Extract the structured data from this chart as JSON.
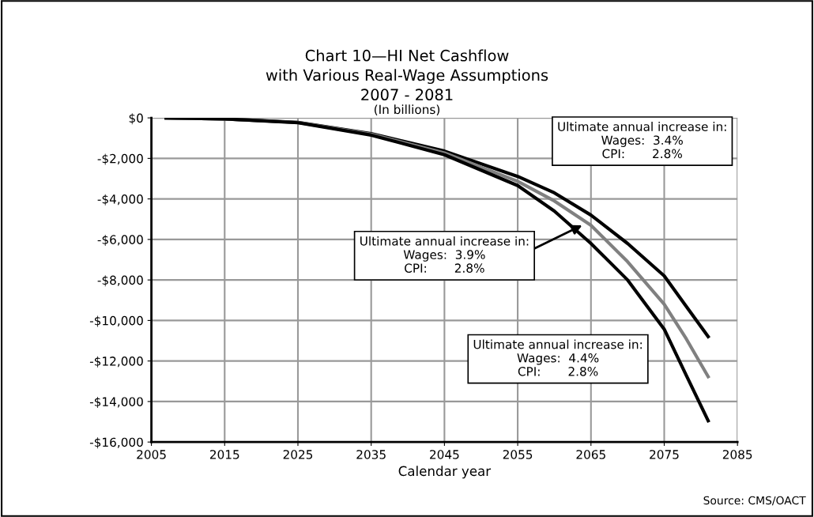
{
  "chart_data": {
    "type": "line",
    "title": "Chart 10—HI Net Cashflow\nwith Various Real-Wage Assumptions\n2007 - 2081",
    "subtitle": "(In billions)",
    "xlabel": "Calendar year",
    "x": [
      2007,
      2015,
      2025,
      2035,
      2045,
      2055,
      2060,
      2065,
      2070,
      2075,
      2078,
      2081
    ],
    "series": [
      {
        "color": "#000000",
        "values": [
          0,
          -50,
          -220,
          -780,
          -1640,
          -2890,
          -3700,
          -4800,
          -6200,
          -7800,
          -9300,
          -10800
        ]
      },
      {
        "color": "#808080",
        "values": [
          0,
          -50,
          -230,
          -810,
          -1730,
          -3130,
          -4100,
          -5300,
          -7100,
          -9200,
          -10900,
          -12770
        ]
      },
      {
        "color": "#000000",
        "values": [
          0,
          -50,
          -240,
          -850,
          -1820,
          -3340,
          -4600,
          -6200,
          -8000,
          -10430,
          -12700,
          -14950
        ]
      }
    ],
    "xlim": [
      2005,
      2085
    ],
    "xticks": [
      2005,
      2015,
      2025,
      2035,
      2045,
      2055,
      2065,
      2075,
      2085
    ],
    "ylim": [
      -16000,
      0
    ],
    "yticks": [
      {
        "value": 0,
        "label": "$0"
      },
      {
        "value": -2000,
        "label": "-$2,000"
      },
      {
        "value": -4000,
        "label": "-$4,000"
      },
      {
        "value": -6000,
        "label": "-$6,000"
      },
      {
        "value": -8000,
        "label": "-$8,000"
      },
      {
        "value": -10000,
        "label": "-$10,000"
      },
      {
        "value": -12000,
        "label": "-$12,000"
      },
      {
        "value": -14000,
        "label": "-$14,000"
      },
      {
        "value": -16000,
        "label": "-$16,000"
      }
    ],
    "grid": true,
    "annotations": [
      "Ultimate annual increase in:\nWages:  3.4%\nCPI:       2.8%",
      {
        "text": "Ultimate annual increase in:\nWages:  3.9%\nCPI:       2.8%",
        "x": 2063.8,
        "y": -5300
      },
      "Ultimate annual increase in:\nWages:  4.4%\nCPI:       2.8%",
      "Source: CMS/OACT"
    ]
  }
}
